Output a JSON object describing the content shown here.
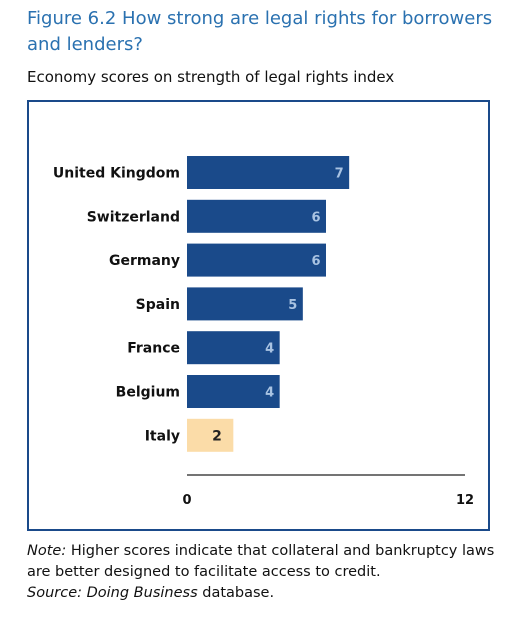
{
  "figure": {
    "title": "Figure 6.2 How strong are legal rights for borrowers and lenders?",
    "subtitle": "Economy scores on strength of legal rights index"
  },
  "chart_data": {
    "type": "bar",
    "orientation": "horizontal",
    "categories": [
      "United Kingdom",
      "Switzerland",
      "Germany",
      "Spain",
      "France",
      "Belgium",
      "Italy"
    ],
    "values": [
      7,
      6,
      6,
      5,
      4,
      4,
      2
    ],
    "data_labels": [
      "7",
      "6",
      "6",
      "5",
      "4",
      "4",
      "2"
    ],
    "xlim": [
      0,
      12
    ],
    "x_tick_labels": [
      "0",
      "12"
    ],
    "grid": false,
    "colors": {
      "bar": "#1a4a8a",
      "highlight_bar": "#fbdca8",
      "label_on_bar": "#a9c3e2",
      "label_on_highlight": "#222222"
    },
    "highlight_category": "Italy"
  },
  "notes": {
    "note_label": "Note:",
    "note_text": " Higher scores indicate that collateral and bankruptcy laws are better designed to facilitate access to credit.",
    "source_label": "Source: Doing Business",
    "source_text": " database."
  }
}
